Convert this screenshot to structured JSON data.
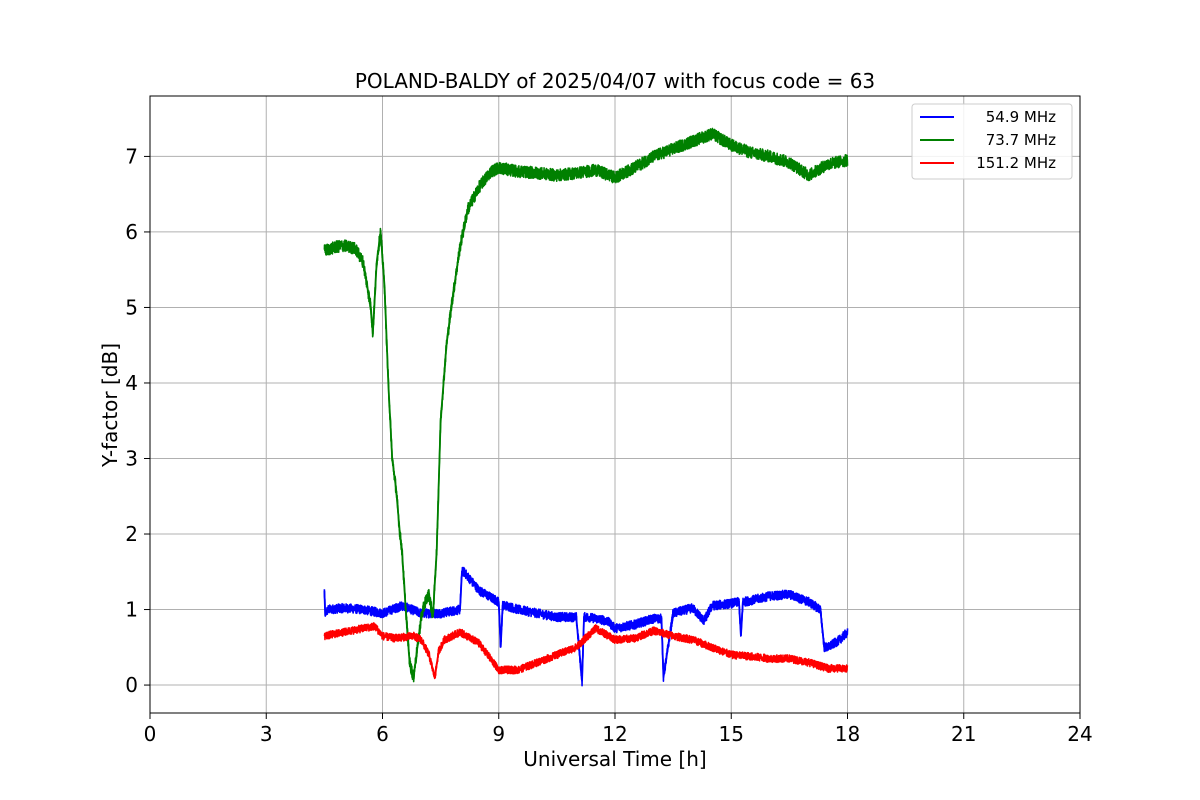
{
  "chart_data": {
    "type": "line",
    "title": "POLAND-BALDY of 2025/04/07 with focus code = 63",
    "xlabel": "Universal Time [h]",
    "ylabel": "Y-factor [dB]",
    "xlim": [
      0,
      24
    ],
    "ylim": [
      -0.37,
      7.8
    ],
    "xticks": [
      0,
      3,
      6,
      9,
      12,
      15,
      18,
      21,
      24
    ],
    "yticks": [
      0,
      1,
      2,
      3,
      4,
      5,
      6,
      7
    ],
    "grid": true,
    "legend_position": "top-right",
    "series": [
      {
        "name": "54.9 MHz",
        "color": "#0000ff",
        "noise": 0.06,
        "x": [
          4.5,
          4.52,
          4.6,
          5.0,
          5.5,
          6.0,
          6.5,
          7.0,
          7.5,
          8.0,
          8.05,
          8.1,
          8.5,
          9.0,
          9.05,
          9.1,
          9.2,
          9.5,
          10.0,
          10.5,
          11.0,
          11.15,
          11.2,
          11.3,
          11.5,
          11.8,
          12.0,
          12.5,
          13.0,
          13.2,
          13.25,
          13.5,
          14.0,
          14.3,
          14.5,
          15.0,
          15.2,
          15.25,
          15.3,
          15.5,
          16.0,
          16.5,
          17.0,
          17.3,
          17.4,
          17.5,
          17.8,
          18.0
        ],
        "y": [
          1.25,
          0.95,
          1.0,
          1.02,
          1.0,
          0.95,
          1.05,
          0.95,
          0.95,
          1.0,
          1.5,
          1.5,
          1.25,
          1.1,
          0.5,
          1.05,
          1.05,
          1.0,
          0.95,
          0.9,
          0.9,
          0.05,
          0.9,
          0.9,
          0.88,
          0.85,
          0.75,
          0.8,
          0.88,
          0.88,
          0.1,
          0.95,
          1.02,
          0.85,
          1.05,
          1.08,
          1.1,
          0.65,
          1.1,
          1.12,
          1.18,
          1.2,
          1.1,
          1.0,
          0.5,
          0.5,
          0.6,
          0.7
        ]
      },
      {
        "name": "73.7 MHz",
        "color": "#008000",
        "noise": 0.08,
        "x": [
          4.5,
          4.8,
          5.0,
          5.3,
          5.5,
          5.7,
          5.75,
          5.85,
          5.95,
          6.05,
          6.15,
          6.25,
          6.35,
          6.45,
          6.5,
          6.6,
          6.7,
          6.8,
          6.9,
          7.0,
          7.1,
          7.2,
          7.3,
          7.4,
          7.5,
          7.65,
          7.8,
          8.0,
          8.2,
          8.5,
          8.8,
          9.0,
          9.5,
          10.0,
          10.5,
          11.0,
          11.5,
          12.0,
          12.5,
          13.0,
          13.5,
          14.0,
          14.5,
          15.0,
          15.5,
          16.0,
          16.5,
          17.0,
          17.5,
          18.0
        ],
        "y": [
          5.75,
          5.8,
          5.82,
          5.78,
          5.6,
          5.0,
          4.65,
          5.6,
          6.0,
          5.3,
          4.0,
          3.0,
          2.6,
          2.0,
          1.8,
          1.0,
          0.3,
          0.1,
          0.5,
          0.9,
          1.1,
          1.2,
          0.9,
          1.8,
          3.5,
          4.5,
          5.1,
          5.8,
          6.3,
          6.6,
          6.8,
          6.85,
          6.8,
          6.78,
          6.75,
          6.78,
          6.82,
          6.72,
          6.85,
          7.0,
          7.1,
          7.2,
          7.3,
          7.15,
          7.05,
          7.0,
          6.92,
          6.75,
          6.9,
          6.95
        ]
      },
      {
        "name": "151.2 MHz",
        "color": "#ff0000",
        "noise": 0.05,
        "x": [
          4.5,
          5.0,
          5.5,
          5.8,
          6.0,
          6.3,
          6.8,
          7.0,
          7.2,
          7.35,
          7.45,
          7.6,
          8.0,
          8.5,
          9.0,
          9.5,
          10.0,
          10.5,
          11.0,
          11.5,
          12.0,
          12.5,
          13.0,
          13.5,
          14.0,
          14.5,
          15.0,
          15.5,
          16.0,
          16.5,
          17.0,
          17.5,
          18.0
        ],
        "y": [
          0.65,
          0.7,
          0.75,
          0.78,
          0.65,
          0.62,
          0.65,
          0.6,
          0.4,
          0.1,
          0.45,
          0.6,
          0.7,
          0.55,
          0.2,
          0.2,
          0.3,
          0.4,
          0.5,
          0.75,
          0.6,
          0.62,
          0.72,
          0.65,
          0.6,
          0.5,
          0.4,
          0.38,
          0.35,
          0.35,
          0.3,
          0.22,
          0.22
        ]
      }
    ]
  }
}
